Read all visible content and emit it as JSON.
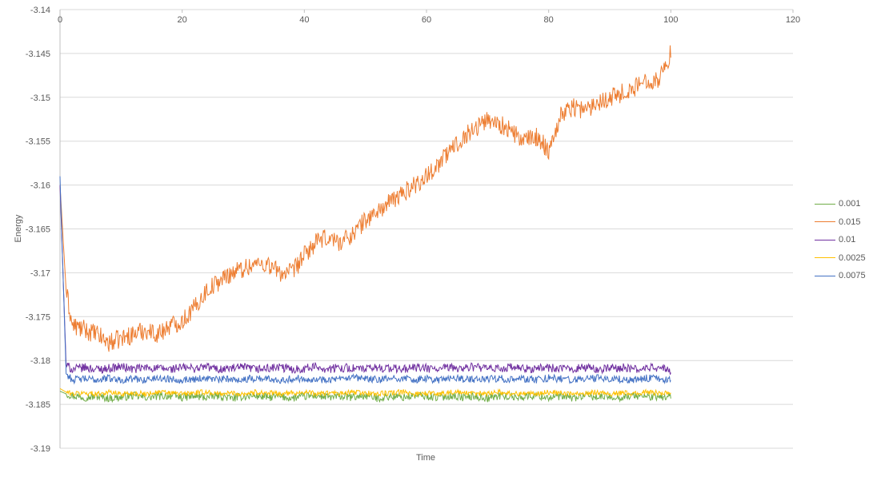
{
  "chart_data": {
    "type": "line",
    "title": "",
    "xlabel": "Time",
    "ylabel": "Energy",
    "xlim": [
      0,
      120
    ],
    "ylim": [
      -3.19,
      -3.14
    ],
    "x_ticks": [
      "0",
      "20",
      "40",
      "60",
      "80",
      "100",
      "120"
    ],
    "y_ticks": [
      "-3.14",
      "-3.145",
      "-3.15",
      "-3.155",
      "-3.16",
      "-3.165",
      "-3.17",
      "-3.175",
      "-3.18",
      "-3.185",
      "-3.19"
    ],
    "x_axis_position": "top",
    "grid": "horizontal",
    "legend_position": "right",
    "x": [
      0,
      1,
      2,
      4,
      6,
      8,
      10,
      12,
      14,
      16,
      18,
      20,
      22,
      24,
      26,
      28,
      30,
      32,
      34,
      36,
      38,
      40,
      42,
      44,
      46,
      48,
      50,
      52,
      54,
      56,
      58,
      60,
      62,
      64,
      66,
      68,
      70,
      72,
      74,
      76,
      78,
      80,
      82,
      84,
      86,
      88,
      90,
      92,
      94,
      96,
      98,
      100
    ],
    "series": [
      {
        "name": "0.001",
        "color": "#70ad47",
        "values": [
          -3.1835,
          -3.1838,
          -3.184,
          -3.1842,
          -3.1841,
          -3.1843,
          -3.1842,
          -3.184,
          -3.1842,
          -3.1841,
          -3.184,
          -3.1842,
          -3.1841,
          -3.1842,
          -3.184,
          -3.1843,
          -3.1841,
          -3.184,
          -3.1842,
          -3.1841,
          -3.1843,
          -3.1841,
          -3.184,
          -3.1842,
          -3.1841,
          -3.1842,
          -3.184,
          -3.1843,
          -3.1841,
          -3.1842,
          -3.184,
          -3.1841,
          -3.1842,
          -3.184,
          -3.1842,
          -3.1841,
          -3.1843,
          -3.184,
          -3.1842,
          -3.1841,
          -3.184,
          -3.1842,
          -3.1841,
          -3.1843,
          -3.184,
          -3.1842,
          -3.1841,
          -3.1842,
          -3.184,
          -3.1841,
          -3.1842,
          -3.1841
        ]
      },
      {
        "name": "0.015",
        "color": "#ed7d31",
        "values": [
          -3.16,
          -3.172,
          -3.176,
          -3.1765,
          -3.177,
          -3.178,
          -3.1775,
          -3.177,
          -3.1765,
          -3.177,
          -3.176,
          -3.1755,
          -3.174,
          -3.172,
          -3.171,
          -3.17,
          -3.1695,
          -3.169,
          -3.169,
          -3.17,
          -3.17,
          -3.168,
          -3.1665,
          -3.166,
          -3.1665,
          -3.1655,
          -3.164,
          -3.163,
          -3.162,
          -3.161,
          -3.16,
          -3.159,
          -3.1575,
          -3.156,
          -3.1545,
          -3.1535,
          -3.1525,
          -3.153,
          -3.154,
          -3.155,
          -3.1545,
          -3.156,
          -3.152,
          -3.151,
          -3.1515,
          -3.1505,
          -3.15,
          -3.1495,
          -3.149,
          -3.148,
          -3.148,
          -3.145
        ]
      },
      {
        "name": "0.01",
        "color": "#7030a0",
        "values": [
          -3.16,
          -3.1805,
          -3.181,
          -3.1808,
          -3.181,
          -3.1809,
          -3.1807,
          -3.181,
          -3.1808,
          -3.1809,
          -3.181,
          -3.1808,
          -3.1809,
          -3.1807,
          -3.181,
          -3.1809,
          -3.1808,
          -3.181,
          -3.1809,
          -3.1808,
          -3.181,
          -3.1809,
          -3.1807,
          -3.181,
          -3.1808,
          -3.1809,
          -3.181,
          -3.1808,
          -3.1809,
          -3.181,
          -3.1808,
          -3.1809,
          -3.181,
          -3.1808,
          -3.1809,
          -3.1807,
          -3.181,
          -3.1809,
          -3.1808,
          -3.181,
          -3.1809,
          -3.1808,
          -3.181,
          -3.1809,
          -3.1808,
          -3.181,
          -3.1809,
          -3.1808,
          -3.181,
          -3.1809,
          -3.1808,
          -3.1812
        ]
      },
      {
        "name": "0.0025",
        "color": "#ffc000",
        "values": [
          -3.1832,
          -3.1836,
          -3.1838,
          -3.1837,
          -3.1838,
          -3.1836,
          -3.1838,
          -3.1837,
          -3.1838,
          -3.1836,
          -3.1837,
          -3.1838,
          -3.1837,
          -3.1836,
          -3.1838,
          -3.1837,
          -3.1838,
          -3.1836,
          -3.1837,
          -3.1838,
          -3.1837,
          -3.1836,
          -3.1838,
          -3.1837,
          -3.1838,
          -3.1836,
          -3.1837,
          -3.1838,
          -3.1837,
          -3.1836,
          -3.1838,
          -3.1837,
          -3.1838,
          -3.1836,
          -3.1837,
          -3.1838,
          -3.1837,
          -3.1836,
          -3.1838,
          -3.1837,
          -3.1838,
          -3.1836,
          -3.1837,
          -3.1838,
          -3.1837,
          -3.1836,
          -3.1838,
          -3.1837,
          -3.1838,
          -3.1836,
          -3.1837,
          -3.1836
        ]
      },
      {
        "name": "0.0075",
        "color": "#4472c4",
        "values": [
          -3.159,
          -3.1815,
          -3.1822,
          -3.1821,
          -3.1822,
          -3.182,
          -3.1822,
          -3.1821,
          -3.1822,
          -3.182,
          -3.1821,
          -3.1822,
          -3.1821,
          -3.182,
          -3.1822,
          -3.1821,
          -3.1822,
          -3.182,
          -3.1821,
          -3.1822,
          -3.1821,
          -3.182,
          -3.1822,
          -3.1821,
          -3.1822,
          -3.182,
          -3.1821,
          -3.1822,
          -3.1821,
          -3.182,
          -3.1822,
          -3.1821,
          -3.1822,
          -3.182,
          -3.1821,
          -3.1822,
          -3.1821,
          -3.182,
          -3.1822,
          -3.1821,
          -3.1822,
          -3.182,
          -3.1821,
          -3.1822,
          -3.1821,
          -3.182,
          -3.1822,
          -3.1821,
          -3.1822,
          -3.182,
          -3.1821,
          -3.1822
        ]
      }
    ]
  }
}
